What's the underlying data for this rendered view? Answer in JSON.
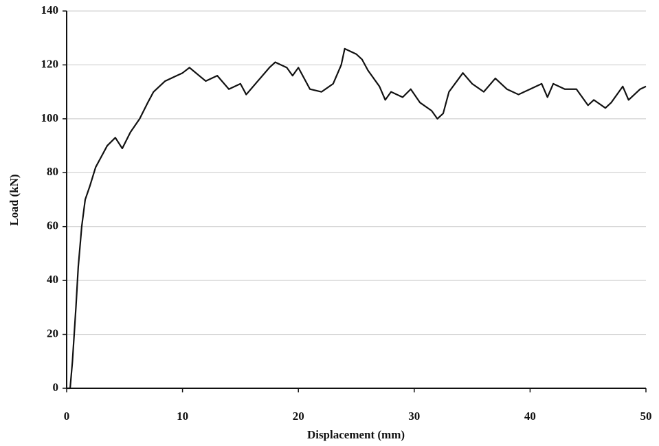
{
  "chart_data": {
    "type": "line",
    "x_label": "Displacement (mm)",
    "y_label": "Load (kN)",
    "x": [
      0,
      0.3,
      0.5,
      0.8,
      1.0,
      1.3,
      1.6,
      2.0,
      2.5,
      3.0,
      3.5,
      4.2,
      4.8,
      5.5,
      6.3,
      7.0,
      7.5,
      8.5,
      10,
      10.6,
      12,
      13,
      14,
      15,
      15.5,
      16.5,
      17.5,
      18,
      19,
      19.5,
      20,
      21,
      22,
      23,
      23.7,
      24,
      25,
      25.5,
      26,
      27,
      27.5,
      28,
      29,
      29.7,
      30.5,
      31.5,
      32,
      32.5,
      33,
      34.2,
      35,
      36,
      37,
      38,
      39,
      40,
      41,
      41.5,
      42,
      43,
      44,
      45,
      45.5,
      46.5,
      47,
      48,
      48.5,
      49.5,
      50
    ],
    "series": [
      {
        "name": "Load",
        "color": "#111111",
        "values": [
          0,
          0,
          10,
          30,
          45,
          60,
          70,
          75,
          82,
          86,
          90,
          93,
          89,
          95,
          100,
          106,
          110,
          114,
          117,
          119,
          114,
          116,
          111,
          113,
          109,
          114,
          119,
          121,
          119,
          116,
          119,
          111,
          110,
          113,
          120,
          126,
          124,
          122,
          118,
          112,
          107,
          110,
          108,
          111,
          106,
          103,
          100,
          102,
          110,
          117,
          113,
          110,
          115,
          111,
          109,
          111,
          113,
          108,
          113,
          111,
          111,
          105,
          107,
          104,
          106,
          112,
          107,
          111,
          112
        ]
      }
    ],
    "xlim": [
      0,
      50
    ],
    "xticks": [
      0,
      10,
      20,
      30,
      40,
      50
    ],
    "ylim": [
      0,
      140
    ],
    "yticks": [
      0,
      20,
      40,
      60,
      80,
      100,
      120,
      140
    ],
    "grid": true
  }
}
